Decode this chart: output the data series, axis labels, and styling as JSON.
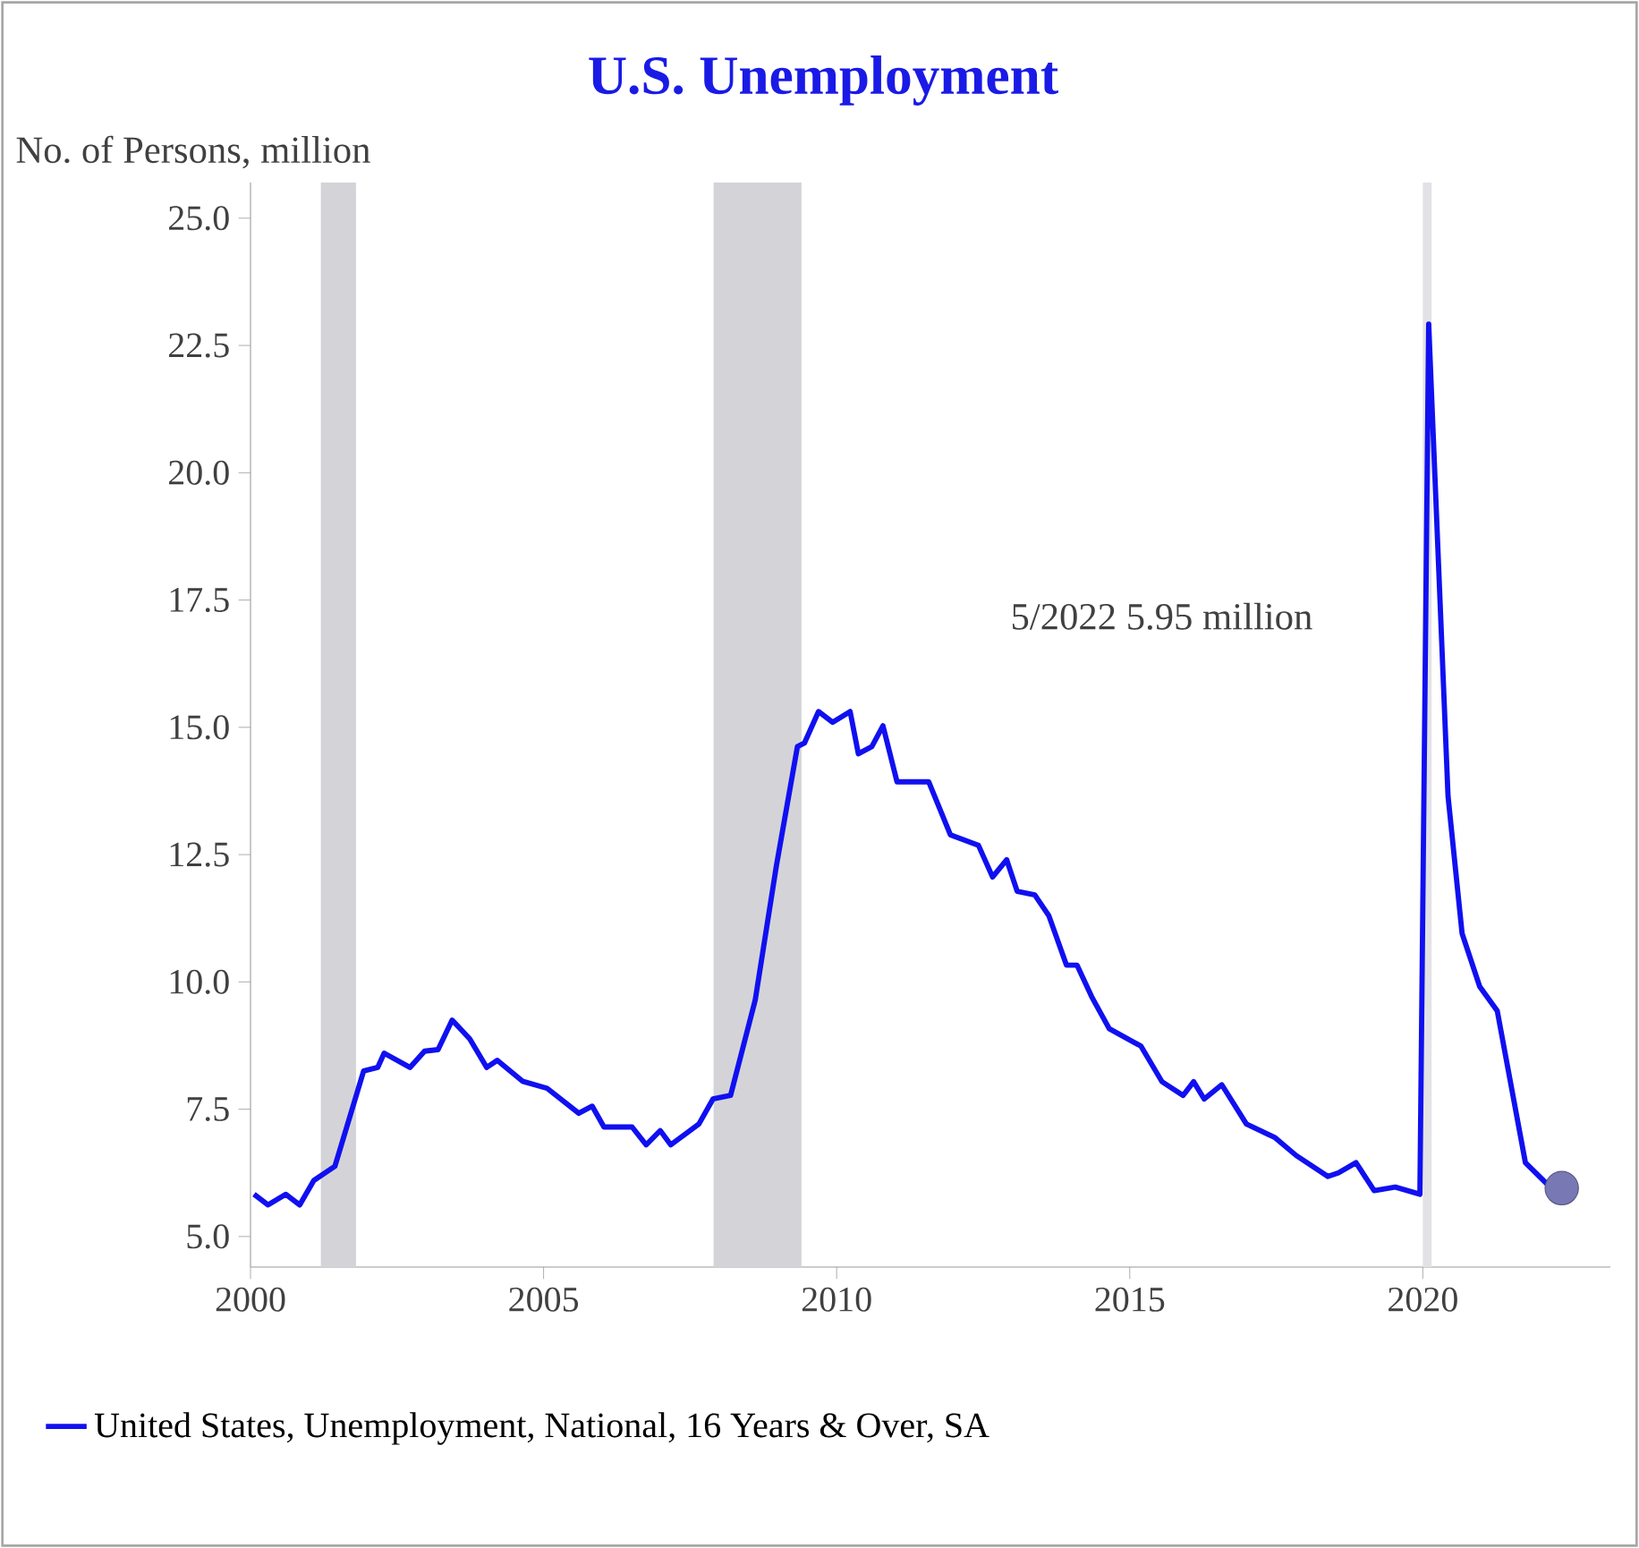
{
  "chart_data": {
    "type": "line",
    "title": "U.S. Unemployment",
    "ylabel": "No. of Persons, million",
    "annotations": [
      "5/2022 5.95 million"
    ],
    "xlim": [
      2000,
      2023.2
    ],
    "xticks": [
      2000,
      2005,
      2010,
      2015,
      2020
    ],
    "ylim": [
      4.4,
      25.7
    ],
    "yticks": [
      {
        "value": 5,
        "label": "5.0"
      },
      7.5,
      {
        "value": 10,
        "label": "10.0"
      },
      12.5,
      {
        "value": 15,
        "label": "15.0"
      },
      17.5,
      {
        "value": 20,
        "label": "20.0"
      },
      22.5,
      {
        "value": 25,
        "label": "25.0"
      }
    ],
    "grid": false,
    "legend": "bottom",
    "marker": "none",
    "line_style": "solid",
    "bands": [
      {
        "axis": "x",
        "from": 2001.2,
        "to": 2001.8,
        "color": "#d4d4d8"
      },
      {
        "axis": "x",
        "from": 2007.9,
        "to": 2009.4,
        "color": "#d4d4d8"
      },
      {
        "axis": "x",
        "from": 2020.0,
        "to": 2020.15,
        "color": "#e2e2e6"
      }
    ],
    "series": [
      {
        "name": "United States, Unemployment, National, 16 Years & Over, SA",
        "color": "#1010f0",
        "x": [
          2000.06,
          2000.3,
          2000.6,
          2000.84,
          2001.08,
          2001.44,
          2001.93,
          2002.17,
          2002.28,
          2002.72,
          2002.97,
          2003.2,
          2003.44,
          2003.74,
          2004.03,
          2004.21,
          2004.64,
          2005.06,
          2005.6,
          2005.83,
          2006.03,
          2006.51,
          2006.75,
          2006.99,
          2007.17,
          2007.65,
          2007.89,
          2008.19,
          2008.61,
          2008.97,
          2009.33,
          2009.45,
          2009.69,
          2009.93,
          2010.23,
          2010.37,
          2010.6,
          2010.79,
          2011.03,
          2011.57,
          2011.94,
          2012.42,
          2012.66,
          2012.9,
          2013.08,
          2013.38,
          2013.62,
          2013.92,
          2014.1,
          2014.35,
          2014.65,
          2015.19,
          2015.55,
          2015.91,
          2016.09,
          2016.27,
          2016.57,
          2016.99,
          2017.48,
          2017.84,
          2018.38,
          2018.56,
          2018.86,
          2019.17,
          2019.53,
          2019.95,
          2020.1,
          2020.43,
          2020.67,
          2020.97,
          2021.27,
          2021.75,
          2022.11,
          2022.37
        ],
        "values": [
          5.83,
          5.62,
          5.83,
          5.62,
          6.1,
          6.38,
          8.25,
          8.32,
          8.6,
          8.32,
          8.64,
          8.67,
          9.25,
          8.88,
          8.32,
          8.46,
          8.05,
          7.91,
          7.42,
          7.56,
          7.15,
          7.15,
          6.8,
          7.08,
          6.8,
          7.21,
          7.7,
          7.77,
          9.64,
          12.27,
          14.62,
          14.69,
          15.31,
          15.1,
          15.31,
          14.48,
          14.62,
          15.03,
          13.93,
          13.93,
          12.89,
          12.68,
          12.06,
          12.4,
          11.78,
          11.71,
          11.3,
          10.33,
          10.33,
          9.71,
          9.08,
          8.74,
          8.04,
          7.77,
          8.04,
          7.7,
          7.98,
          7.21,
          6.94,
          6.59,
          6.18,
          6.25,
          6.45,
          5.9,
          5.97,
          5.83,
          22.92,
          13.65,
          10.95,
          9.91,
          9.43,
          6.45,
          6.04,
          5.95
        ]
      },
      {
        "type": "scatter",
        "marker": "circle",
        "color": "#7878b4",
        "x": [
          2022.37
        ],
        "values": [
          5.95
        ]
      }
    ]
  }
}
